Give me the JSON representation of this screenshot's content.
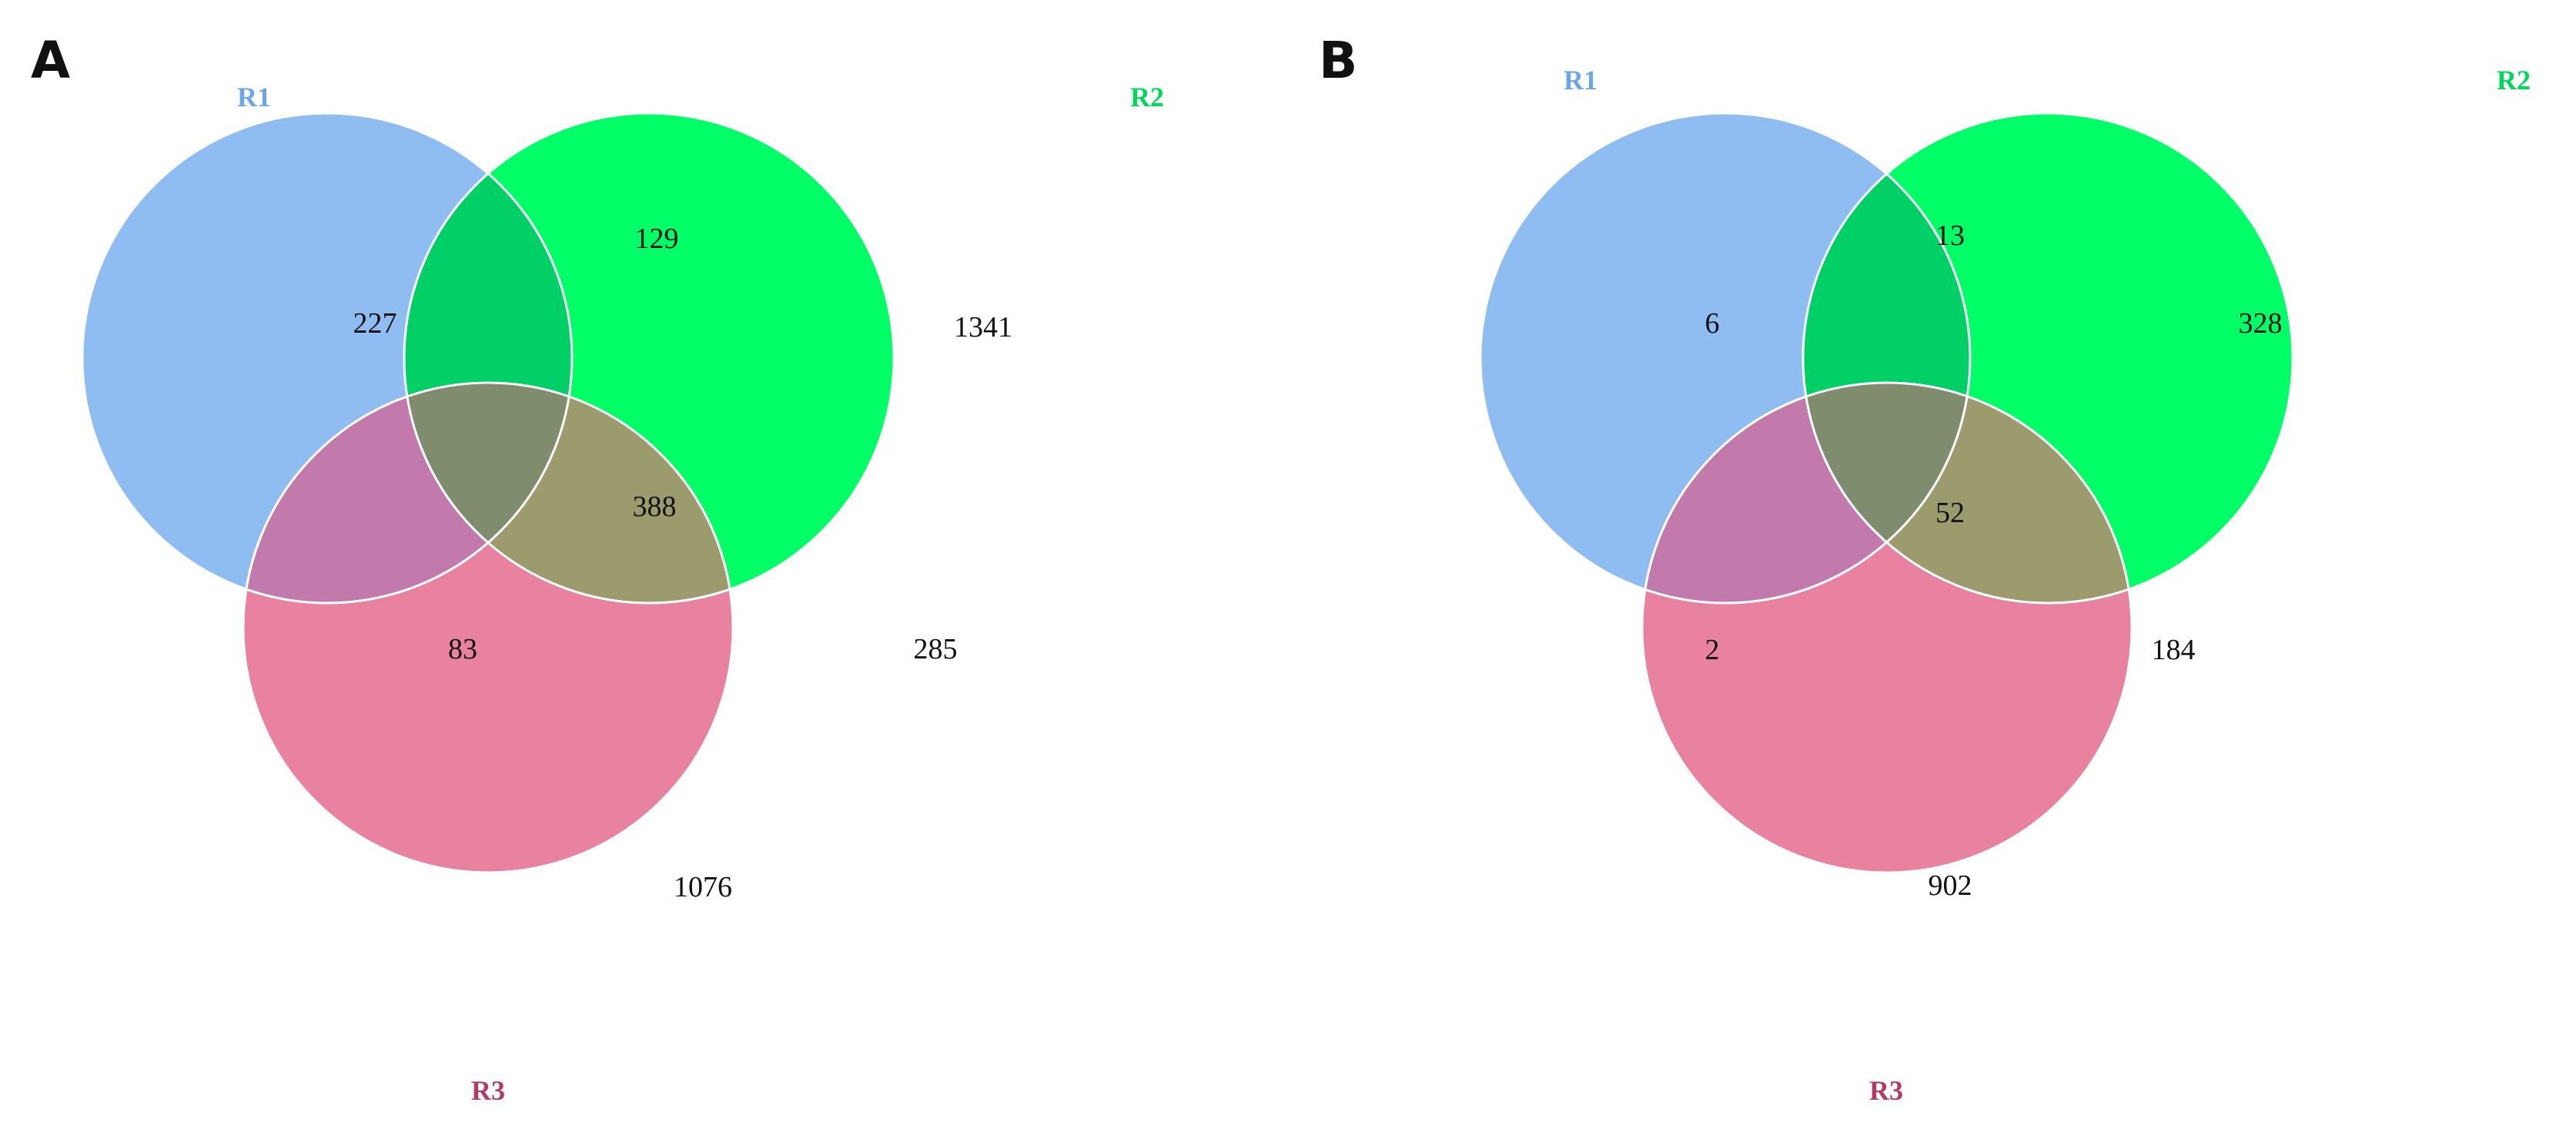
{
  "panels": [
    {
      "letter": "A",
      "sets": [
        {
          "id": "r1",
          "label": "R1",
          "color": "#8fbdf2",
          "label_color": "#6aa6e8"
        },
        {
          "id": "r2",
          "label": "R2",
          "color": "#00ff66",
          "label_color": "#00d858"
        },
        {
          "id": "r3",
          "label": "R3",
          "color": "#e882a0",
          "label_color": "#b23a68"
        }
      ],
      "counts": {
        "r1_only": "227",
        "r1_r2": "129",
        "r2_only": "1341",
        "all": "388",
        "r1_r3": "83",
        "r2_r3": "285",
        "r3_only": "1076"
      }
    },
    {
      "letter": "B",
      "sets": [
        {
          "id": "r1",
          "label": "R1",
          "color": "#8fbdf2",
          "label_color": "#6aa6e8"
        },
        {
          "id": "r2",
          "label": "R2",
          "color": "#00ff66",
          "label_color": "#00d858"
        },
        {
          "id": "r3",
          "label": "R3",
          "color": "#e882a0",
          "label_color": "#b23a68"
        }
      ],
      "counts": {
        "r1_only": "6",
        "r1_r2": "13",
        "r2_only": "328",
        "all": "52",
        "r1_r3": "2",
        "r2_r3": "184",
        "r3_only": "902"
      }
    }
  ],
  "overlap_colors": {
    "r1_r2": "#00d066",
    "r1_r3": "#c27aac",
    "r2_r3": "#9b9b6d",
    "all": "#808c6e"
  },
  "outline_color": "#ffffff"
}
